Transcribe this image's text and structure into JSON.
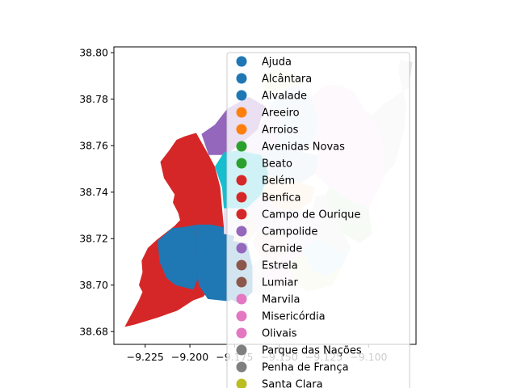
{
  "chart_data": {
    "type": "choropleth-map",
    "xlim": [
      -9.2425,
      -9.0735
    ],
    "ylim": [
      38.6745,
      38.8025
    ],
    "x_ticks": [
      {
        "value": -9.225,
        "label": "−9.225"
      },
      {
        "value": -9.2,
        "label": "−9.200"
      },
      {
        "value": -9.175,
        "label": "−9.175"
      },
      {
        "value": -9.15,
        "label": "−9.150"
      },
      {
        "value": -9.125,
        "label": "−9.125"
      },
      {
        "value": -9.1,
        "label": "−9.100"
      }
    ],
    "y_ticks": [
      {
        "value": 38.68,
        "label": "38.68"
      },
      {
        "value": 38.7,
        "label": "38.70"
      },
      {
        "value": 38.72,
        "label": "38.72"
      },
      {
        "value": 38.74,
        "label": "38.74"
      },
      {
        "value": 38.76,
        "label": "38.76"
      },
      {
        "value": 38.78,
        "label": "38.78"
      },
      {
        "value": 38.8,
        "label": "38.80"
      }
    ],
    "legend": {
      "placement": "upper-right",
      "entries": [
        {
          "name": "Ajuda",
          "color": "#1f77b4"
        },
        {
          "name": "Alcântara",
          "color": "#1f77b4"
        },
        {
          "name": "Alvalade",
          "color": "#1f77b4"
        },
        {
          "name": "Areeiro",
          "color": "#ff7f0e"
        },
        {
          "name": "Arroios",
          "color": "#ff7f0e"
        },
        {
          "name": "Avenidas Novas",
          "color": "#2ca02c"
        },
        {
          "name": "Beato",
          "color": "#2ca02c"
        },
        {
          "name": "Belém",
          "color": "#d62728"
        },
        {
          "name": "Benfica",
          "color": "#d62728"
        },
        {
          "name": "Campo de Ourique",
          "color": "#d62728"
        },
        {
          "name": "Campolide",
          "color": "#9467bd"
        },
        {
          "name": "Carnide",
          "color": "#9467bd"
        },
        {
          "name": "Estrela",
          "color": "#8c564b"
        },
        {
          "name": "Lumiar",
          "color": "#8c564b"
        },
        {
          "name": "Marvila",
          "color": "#e377c2"
        },
        {
          "name": "Misericórdia",
          "color": "#e377c2"
        },
        {
          "name": "Olivais",
          "color": "#e377c2"
        },
        {
          "name": "Parque das Nações",
          "color": "#7f7f7f"
        },
        {
          "name": "Penha de França",
          "color": "#7f7f7f"
        },
        {
          "name": "Santa Clara",
          "color": "#bcbd22"
        }
      ]
    },
    "regions": [
      {
        "id": "west-large",
        "color": "#d62728",
        "points": [
          [
            -9.2365,
            38.682
          ],
          [
            -9.231,
            38.683
          ],
          [
            -9.218,
            38.686
          ],
          [
            -9.207,
            38.689
          ],
          [
            -9.198,
            38.6935
          ],
          [
            -9.1925,
            38.695
          ],
          [
            -9.187,
            38.7
          ],
          [
            -9.182,
            38.705
          ],
          [
            -9.18,
            38.712
          ],
          [
            -9.181,
            38.718
          ],
          [
            -9.181,
            38.725
          ],
          [
            -9.182,
            38.733
          ],
          [
            -9.183,
            38.742
          ],
          [
            -9.186,
            38.751
          ],
          [
            -9.1895,
            38.756
          ],
          [
            -9.1965,
            38.7655
          ],
          [
            -9.203,
            38.764
          ],
          [
            -9.2075,
            38.7625
          ],
          [
            -9.2115,
            38.758
          ],
          [
            -9.2165,
            38.753
          ],
          [
            -9.2145,
            38.746
          ],
          [
            -9.2085,
            38.739
          ],
          [
            -9.2095,
            38.7355
          ],
          [
            -9.2065,
            38.731
          ],
          [
            -9.2055,
            38.728
          ],
          [
            -9.2085,
            38.7255
          ],
          [
            -9.2185,
            38.7195
          ],
          [
            -9.2235,
            38.716
          ],
          [
            -9.227,
            38.7105
          ],
          [
            -9.2265,
            38.7055
          ],
          [
            -9.2285,
            38.7
          ],
          [
            -9.2265,
            38.697
          ],
          [
            -9.2285,
            38.6935
          ]
        ]
      },
      {
        "id": "blue-ajuda",
        "color": "#1f77b4",
        "points": [
          [
            -9.218,
            38.719
          ],
          [
            -9.21,
            38.7245
          ],
          [
            -9.203,
            38.725
          ],
          [
            -9.196,
            38.726
          ],
          [
            -9.197,
            38.713
          ],
          [
            -9.195,
            38.704
          ],
          [
            -9.198,
            38.698
          ],
          [
            -9.208,
            38.7
          ],
          [
            -9.213,
            38.703
          ],
          [
            -9.217,
            38.71
          ]
        ]
      },
      {
        "id": "blue-alcantara",
        "color": "#1f77b4",
        "points": [
          [
            -9.197,
            38.713
          ],
          [
            -9.196,
            38.726
          ],
          [
            -9.188,
            38.726
          ],
          [
            -9.176,
            38.724
          ],
          [
            -9.172,
            38.708
          ],
          [
            -9.172,
            38.697
          ],
          [
            -9.178,
            38.693
          ],
          [
            -9.19,
            38.694
          ],
          [
            -9.195,
            38.7
          ]
        ]
      },
      {
        "id": "blue-lower",
        "color": "#1f77b4",
        "points": [
          [
            -9.182,
            38.712
          ],
          [
            -9.176,
            38.719
          ],
          [
            -9.168,
            38.718
          ],
          [
            -9.165,
            38.708
          ],
          [
            -9.165,
            38.697
          ],
          [
            -9.172,
            38.692
          ],
          [
            -9.18,
            38.695
          ],
          [
            -9.184,
            38.703
          ]
        ]
      },
      {
        "id": "purple-nw",
        "color": "#9467bd",
        "points": [
          [
            -9.1935,
            38.765
          ],
          [
            -9.186,
            38.769
          ],
          [
            -9.179,
            38.776
          ],
          [
            -9.167,
            38.781
          ],
          [
            -9.158,
            38.777
          ],
          [
            -9.162,
            38.767
          ],
          [
            -9.171,
            38.761
          ],
          [
            -9.18,
            38.756
          ],
          [
            -9.1895,
            38.756
          ]
        ]
      },
      {
        "id": "cyan",
        "color": "#17becf",
        "points": [
          [
            -9.186,
            38.751
          ],
          [
            -9.182,
            38.742
          ],
          [
            -9.181,
            38.733
          ],
          [
            -9.168,
            38.733
          ],
          [
            -9.16,
            38.739
          ],
          [
            -9.156,
            38.748
          ],
          [
            -9.16,
            38.756
          ],
          [
            -9.173,
            38.758
          ],
          [
            -9.181,
            38.757
          ]
        ]
      },
      {
        "id": "pale-lilac-mid",
        "color": "#e7def0",
        "points": [
          [
            -9.181,
            38.733
          ],
          [
            -9.168,
            38.733
          ],
          [
            -9.162,
            38.724
          ],
          [
            -9.174,
            38.721
          ],
          [
            -9.181,
            38.722
          ]
        ]
      },
      {
        "id": "pale-peach-w",
        "color": "#f4dfd6",
        "points": [
          [
            -9.176,
            38.719
          ],
          [
            -9.168,
            38.718
          ],
          [
            -9.162,
            38.724
          ],
          [
            -9.168,
            38.733
          ],
          [
            -9.172,
            38.726
          ]
        ]
      },
      {
        "id": "pale-purple-n",
        "color": "#e3d9ef",
        "points": [
          [
            -9.173,
            38.758
          ],
          [
            -9.16,
            38.756
          ],
          [
            -9.152,
            38.76
          ],
          [
            -9.15,
            38.768
          ],
          [
            -9.155,
            38.777
          ],
          [
            -9.162,
            38.767
          ],
          [
            -9.171,
            38.761
          ]
        ]
      },
      {
        "id": "pale-blue-lumiar",
        "color": "#d5e5f2",
        "points": [
          [
            -9.155,
            38.777
          ],
          [
            -9.15,
            38.768
          ],
          [
            -9.152,
            38.76
          ],
          [
            -9.145,
            38.758
          ],
          [
            -9.137,
            38.757
          ],
          [
            -9.13,
            38.763
          ],
          [
            -9.128,
            38.772
          ],
          [
            -9.132,
            38.781
          ],
          [
            -9.14,
            38.786
          ],
          [
            -9.148,
            38.784
          ]
        ]
      },
      {
        "id": "pale-yellow-top",
        "color": "#f1edcf",
        "points": [
          [
            -9.157,
            38.782
          ],
          [
            -9.148,
            38.784
          ],
          [
            -9.14,
            38.786
          ],
          [
            -9.135,
            38.787
          ],
          [
            -9.143,
            38.791
          ],
          [
            -9.152,
            38.793
          ],
          [
            -9.16,
            38.79
          ]
        ]
      },
      {
        "id": "pale-blue-mid",
        "color": "#cfe1ef",
        "points": [
          [
            -9.16,
            38.756
          ],
          [
            -9.156,
            38.748
          ],
          [
            -9.148,
            38.744
          ],
          [
            -9.138,
            38.744
          ],
          [
            -9.13,
            38.748
          ],
          [
            -9.128,
            38.756
          ],
          [
            -9.137,
            38.757
          ],
          [
            -9.145,
            38.758
          ],
          [
            -9.152,
            38.76
          ]
        ]
      },
      {
        "id": "pink-olivais",
        "color": "#f6dfee",
        "points": [
          [
            -9.132,
            38.781
          ],
          [
            -9.128,
            38.772
          ],
          [
            -9.13,
            38.763
          ],
          [
            -9.128,
            38.756
          ],
          [
            -9.13,
            38.748
          ],
          [
            -9.122,
            38.742
          ],
          [
            -9.112,
            38.737
          ],
          [
            -9.1,
            38.733
          ],
          [
            -9.0905,
            38.748
          ],
          [
            -9.0935,
            38.768
          ],
          [
            -9.102,
            38.775
          ],
          [
            -9.108,
            38.783
          ],
          [
            -9.116,
            38.786
          ],
          [
            -9.124,
            38.786
          ]
        ]
      },
      {
        "id": "grey-parque",
        "color": "#e5e5e5",
        "points": [
          [
            -9.1025,
            38.775
          ],
          [
            -9.0935,
            38.768
          ],
          [
            -9.0905,
            38.748
          ],
          [
            -9.0855,
            38.752
          ],
          [
            -9.08,
            38.767
          ],
          [
            -9.079,
            38.778
          ],
          [
            -9.0835,
            38.792
          ],
          [
            -9.0825,
            38.797
          ],
          [
            -9.0755,
            38.796
          ],
          [
            -9.0775,
            38.785
          ],
          [
            -9.0915,
            38.778
          ],
          [
            -9.098,
            38.773
          ]
        ]
      },
      {
        "id": "peach-areeiro",
        "color": "#fde1c4",
        "points": [
          [
            -9.148,
            38.744
          ],
          [
            -9.156,
            38.748
          ],
          [
            -9.16,
            38.739
          ],
          [
            -9.151,
            38.733
          ],
          [
            -9.14,
            38.732
          ],
          [
            -9.132,
            38.736
          ],
          [
            -9.13,
            38.742
          ],
          [
            -9.138,
            38.744
          ]
        ]
      },
      {
        "id": "pale-green-beato",
        "color": "#d4ead1",
        "points": [
          [
            -9.122,
            38.742
          ],
          [
            -9.112,
            38.737
          ],
          [
            -9.1,
            38.733
          ],
          [
            -9.098,
            38.722
          ],
          [
            -9.105,
            38.718
          ],
          [
            -9.114,
            38.722
          ],
          [
            -9.122,
            38.734
          ],
          [
            -9.124,
            38.739
          ]
        ]
      },
      {
        "id": "grey-marvila",
        "color": "#e3e3e3",
        "points": [
          [
            -9.124,
            38.739
          ],
          [
            -9.122,
            38.734
          ],
          [
            -9.114,
            38.722
          ],
          [
            -9.11,
            38.716
          ],
          [
            -9.117,
            38.714
          ],
          [
            -9.128,
            38.72
          ],
          [
            -9.132,
            38.73
          ],
          [
            -9.13,
            38.738
          ]
        ]
      },
      {
        "id": "pale-lilac-campolide",
        "color": "#ece2f1",
        "points": [
          [
            -9.168,
            38.733
          ],
          [
            -9.16,
            38.739
          ],
          [
            -9.151,
            38.733
          ],
          [
            -9.148,
            38.724
          ],
          [
            -9.156,
            38.721
          ],
          [
            -9.162,
            38.724
          ]
        ]
      },
      {
        "id": "pale-peach-c",
        "color": "#f6e2dc",
        "points": [
          [
            -9.162,
            38.724
          ],
          [
            -9.156,
            38.721
          ],
          [
            -9.148,
            38.724
          ],
          [
            -9.145,
            38.716
          ],
          [
            -9.152,
            38.71
          ],
          [
            -9.16,
            38.712
          ],
          [
            -9.165,
            38.718
          ]
        ]
      },
      {
        "id": "pale-lilac-s",
        "color": "#eee6f3",
        "points": [
          [
            -9.152,
            38.733
          ],
          [
            -9.14,
            38.732
          ],
          [
            -9.132,
            38.73
          ],
          [
            -9.128,
            38.72
          ],
          [
            -9.136,
            38.716
          ],
          [
            -9.145,
            38.716
          ],
          [
            -9.148,
            38.724
          ]
        ]
      },
      {
        "id": "pale-cyan-se",
        "color": "#d3eef3",
        "points": [
          [
            -9.128,
            38.72
          ],
          [
            -9.117,
            38.714
          ],
          [
            -9.11,
            38.716
          ],
          [
            -9.115,
            38.708
          ],
          [
            -9.123,
            38.704
          ],
          [
            -9.132,
            38.706
          ],
          [
            -9.136,
            38.713
          ],
          [
            -9.136,
            38.716
          ]
        ]
      },
      {
        "id": "pale-olive-se",
        "color": "#efefd2",
        "points": [
          [
            -9.136,
            38.713
          ],
          [
            -9.132,
            38.706
          ],
          [
            -9.123,
            38.704
          ],
          [
            -9.115,
            38.708
          ],
          [
            -9.12,
            38.7
          ],
          [
            -9.135,
            38.697
          ],
          [
            -9.142,
            38.703
          ],
          [
            -9.145,
            38.71
          ]
        ]
      },
      {
        "id": "pale-pink-s",
        "color": "#f6dff0",
        "points": [
          [
            -9.145,
            38.716
          ],
          [
            -9.136,
            38.716
          ],
          [
            -9.136,
            38.713
          ],
          [
            -9.145,
            38.71
          ],
          [
            -9.142,
            38.703
          ],
          [
            -9.15,
            38.7
          ],
          [
            -9.158,
            38.702
          ],
          [
            -9.16,
            38.712
          ],
          [
            -9.152,
            38.71
          ]
        ]
      },
      {
        "id": "pale-grey-s",
        "color": "#e9e9e9",
        "points": [
          [
            -9.16,
            38.712
          ],
          [
            -9.158,
            38.702
          ],
          [
            -9.15,
            38.7
          ],
          [
            -9.156,
            38.694
          ],
          [
            -9.165,
            38.697
          ],
          [
            -9.165,
            38.708
          ]
        ]
      }
    ]
  }
}
